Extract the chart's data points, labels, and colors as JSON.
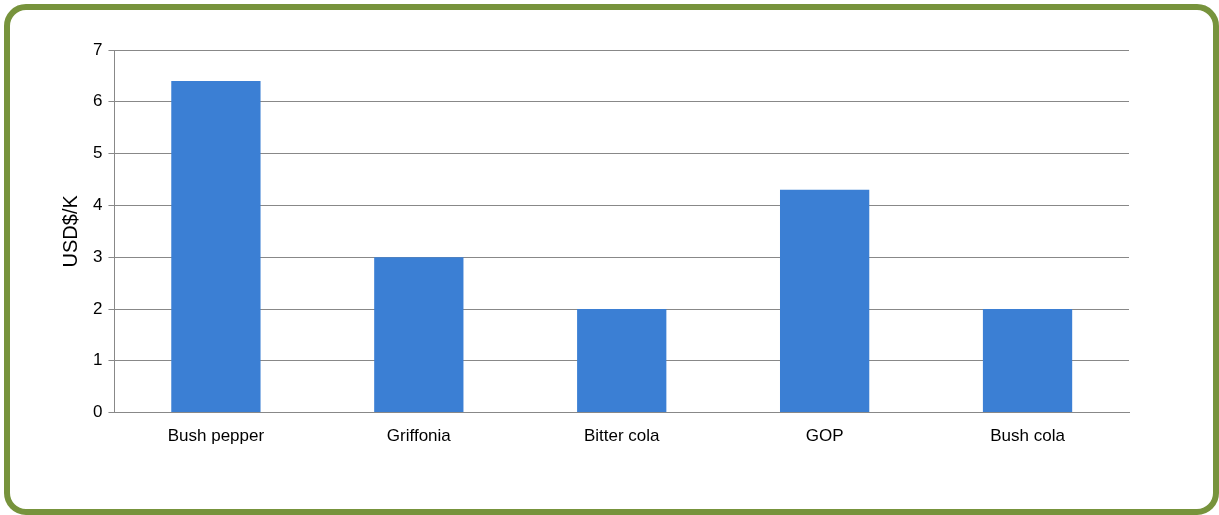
{
  "chart_data": {
    "type": "bar",
    "ylabel": "USD$/K",
    "categories": [
      "Bush pepper",
      "Griffonia",
      "Bitter cola",
      "GOP",
      "Bush cola"
    ],
    "values": [
      6.4,
      3,
      2,
      4.3,
      2
    ],
    "color": "#3b7fd4",
    "ylim": [
      0,
      7
    ],
    "yticks": [
      0,
      1,
      2,
      3,
      4,
      5,
      6,
      7
    ],
    "grid": "y",
    "legend": false
  }
}
